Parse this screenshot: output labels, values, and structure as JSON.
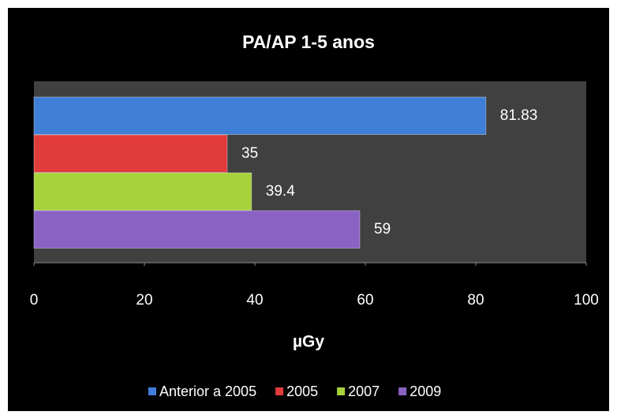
{
  "chart_data": {
    "type": "bar",
    "orientation": "horizontal",
    "title": "PA/AP 1-5 anos",
    "xlabel": "µGy",
    "categories": [
      null
    ],
    "series": [
      {
        "name": "Anterior a 2005",
        "color": "#3f7fd8",
        "values": [
          81.83
        ]
      },
      {
        "name": "2005",
        "color": "#e23b3b",
        "values": [
          35
        ]
      },
      {
        "name": "2007",
        "color": "#a8d23c",
        "values": [
          39.4
        ]
      },
      {
        "name": "2009",
        "color": "#8a62c4",
        "values": [
          59
        ]
      }
    ],
    "xlim": [
      0,
      100
    ],
    "xticks": [
      0,
      20,
      40,
      60,
      80,
      100
    ],
    "legend": "bottom"
  }
}
